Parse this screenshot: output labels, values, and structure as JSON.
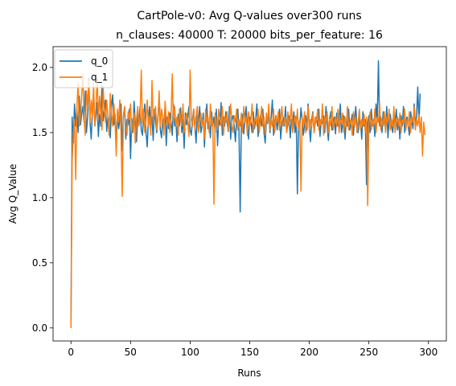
{
  "chart_data": {
    "type": "line",
    "title": "CartPole-v0: Avg Q-values over300 runs",
    "subtitle": "n_clauses: 40000 T: 20000 bits_per_feature: 16",
    "xlabel": "Runs",
    "ylabel": "Avg Q_Value",
    "xlim": [
      -15,
      315
    ],
    "ylim": [
      -0.1,
      2.16
    ],
    "xticks": [
      0,
      50,
      100,
      150,
      200,
      250,
      300
    ],
    "yticks": [
      0.0,
      0.5,
      1.0,
      1.5,
      2.0
    ],
    "ytick_labels": [
      "0.0",
      "0.5",
      "1.0",
      "1.5",
      "2.0"
    ],
    "grid": false,
    "legend_position": "top-left",
    "series": [
      {
        "name": "q_0",
        "color": "#1f77b4",
        "values": [
          0.0,
          1.62,
          1.42,
          1.72,
          1.55,
          1.68,
          1.5,
          1.78,
          1.56,
          1.64,
          1.7,
          1.58,
          1.82,
          1.5,
          1.62,
          1.92,
          1.58,
          1.45,
          1.67,
          1.8,
          1.55,
          1.63,
          1.73,
          1.47,
          1.64,
          1.55,
          1.86,
          1.59,
          1.67,
          1.75,
          1.51,
          1.62,
          1.58,
          1.46,
          1.7,
          1.79,
          1.56,
          1.64,
          1.4,
          1.66,
          1.53,
          1.6,
          1.72,
          1.36,
          1.63,
          1.7,
          1.45,
          1.6,
          1.56,
          1.68,
          1.3,
          1.61,
          1.5,
          1.74,
          1.56,
          1.43,
          1.63,
          1.58,
          1.7,
          1.52,
          1.48,
          1.64,
          1.72,
          1.5,
          1.39,
          1.6,
          1.7,
          1.55,
          1.62,
          1.44,
          1.68,
          1.58,
          1.5,
          1.63,
          1.75,
          1.52,
          1.46,
          1.61,
          1.57,
          1.69,
          1.4,
          1.62,
          1.53,
          1.65,
          1.58,
          1.48,
          1.72,
          1.55,
          1.6,
          1.43,
          1.64,
          1.55,
          1.69,
          1.5,
          1.6,
          1.38,
          1.65,
          1.56,
          1.62,
          1.7,
          1.52,
          1.48,
          1.6,
          1.68,
          1.55,
          1.42,
          1.63,
          1.58,
          1.7,
          1.5,
          1.55,
          1.65,
          1.39,
          1.6,
          1.72,
          1.53,
          1.58,
          1.46,
          1.66,
          1.55,
          1.62,
          1.5,
          1.68,
          1.4,
          1.6,
          1.56,
          1.73,
          1.48,
          1.62,
          1.55,
          1.66,
          1.58,
          1.51,
          1.7,
          1.45,
          1.6,
          1.63,
          1.55,
          1.43,
          1.6,
          1.68,
          1.52,
          0.89,
          1.57,
          1.64,
          1.49,
          1.6,
          1.7,
          1.55,
          1.45,
          1.62,
          1.58,
          1.5,
          1.66,
          1.53,
          1.6,
          1.72,
          1.47,
          1.58,
          1.63,
          1.55,
          1.68,
          1.5,
          1.42,
          1.6,
          1.57,
          1.65,
          1.5,
          1.62,
          1.75,
          1.48,
          1.56,
          1.63,
          1.52,
          1.6,
          1.68,
          1.45,
          1.58,
          1.62,
          1.55,
          1.7,
          1.5,
          1.57,
          1.63,
          1.46,
          1.6,
          1.55,
          1.66,
          1.5,
          1.62,
          1.03,
          1.58,
          1.54,
          1.69,
          1.6,
          1.48,
          1.56,
          1.63,
          1.52,
          1.72,
          1.55,
          1.43,
          1.6,
          1.66,
          1.5,
          1.58,
          1.62,
          1.55,
          1.68,
          1.47,
          1.6,
          1.57,
          1.63,
          1.5,
          1.7,
          1.55,
          1.44,
          1.6,
          1.66,
          1.52,
          1.58,
          1.62,
          1.49,
          1.65,
          1.55,
          1.6,
          1.72,
          1.5,
          1.56,
          1.63,
          1.45,
          1.6,
          1.55,
          1.68,
          1.52,
          1.58,
          1.64,
          1.48,
          1.6,
          1.7,
          1.55,
          1.5,
          1.62,
          1.58,
          1.45,
          1.66,
          1.55,
          1.6,
          1.1,
          1.57,
          1.63,
          1.5,
          1.68,
          1.55,
          1.6,
          1.47,
          1.72,
          1.58,
          2.05,
          1.55,
          1.62,
          1.5,
          1.66,
          1.58,
          1.53,
          1.7,
          1.46,
          1.6,
          1.64,
          1.55,
          1.5,
          1.62,
          1.58,
          1.68,
          1.52,
          1.6,
          1.45,
          1.63,
          1.55,
          1.7,
          1.5,
          1.58,
          1.62,
          1.55,
          1.48,
          1.66,
          1.6,
          1.53,
          1.72,
          1.57,
          1.62,
          1.85,
          1.58,
          1.8
        ]
      },
      {
        "name": "q_1",
        "color": "#ff7f0e",
        "values": [
          0.0,
          1.28,
          1.5,
          1.6,
          1.14,
          1.7,
          1.88,
          1.55,
          1.62,
          1.78,
          1.95,
          1.6,
          1.48,
          1.82,
          1.7,
          1.9,
          1.58,
          1.75,
          1.62,
          1.88,
          1.55,
          1.7,
          1.92,
          1.6,
          1.78,
          1.65,
          1.52,
          1.85,
          1.68,
          1.58,
          1.75,
          1.62,
          1.48,
          1.8,
          1.65,
          1.55,
          1.72,
          1.6,
          1.32,
          1.68,
          1.58,
          1.75,
          1.5,
          1.01,
          1.62,
          1.7,
          1.55,
          1.48,
          1.66,
          1.6,
          1.72,
          1.5,
          1.58,
          1.65,
          1.42,
          1.6,
          1.7,
          1.55,
          1.62,
          1.98,
          1.57,
          1.68,
          1.5,
          1.6,
          1.75,
          1.55,
          1.62,
          1.48,
          1.9,
          1.58,
          1.65,
          1.7,
          1.52,
          1.6,
          1.82,
          1.55,
          1.68,
          1.62,
          1.48,
          1.74,
          1.6,
          1.55,
          1.66,
          1.5,
          1.62,
          1.95,
          1.58,
          1.7,
          1.55,
          1.62,
          1.48,
          1.68,
          1.6,
          1.55,
          1.72,
          1.5,
          1.6,
          1.65,
          1.58,
          1.47,
          1.98,
          1.6,
          1.55,
          1.68,
          1.52,
          1.62,
          1.7,
          1.5,
          1.58,
          1.65,
          1.55,
          1.6,
          1.45,
          1.68,
          1.58,
          1.62,
          1.5,
          1.72,
          1.55,
          1.6,
          0.95,
          1.65,
          1.58,
          1.52,
          1.68,
          1.6,
          1.55,
          1.7,
          1.48,
          1.62,
          1.58,
          1.66,
          1.52,
          1.6,
          1.72,
          1.55,
          1.5,
          1.63,
          1.58,
          1.68,
          1.52,
          1.6,
          1.55,
          1.65,
          1.5,
          1.7,
          1.58,
          1.62,
          1.48,
          1.66,
          1.55,
          1.6,
          1.72,
          1.5,
          1.58,
          1.62,
          1.55,
          1.68,
          1.5,
          1.6,
          1.7,
          1.55,
          1.62,
          1.48,
          1.65,
          1.58,
          1.72,
          1.52,
          1.6,
          1.55,
          1.68,
          1.5,
          1.62,
          1.58,
          1.66,
          1.52,
          1.6,
          1.7,
          1.55,
          1.58,
          1.62,
          1.5,
          1.66,
          1.55,
          1.6,
          1.72,
          1.5,
          1.58,
          1.63,
          1.55,
          1.68,
          1.52,
          1.6,
          1.05,
          1.62,
          1.55,
          1.66,
          1.5,
          1.58,
          1.7,
          1.52,
          1.6,
          1.55,
          1.65,
          1.5,
          1.62,
          1.58,
          1.68,
          1.52,
          1.6,
          1.55,
          1.72,
          1.48,
          1.62,
          1.58,
          1.66,
          1.5,
          1.6,
          1.55,
          1.7,
          1.52,
          1.58,
          1.62,
          1.55,
          1.68,
          1.5,
          1.6,
          1.57,
          1.65,
          1.5,
          1.62,
          1.55,
          1.7,
          1.52,
          1.58,
          1.6,
          1.48,
          1.66,
          1.55,
          1.62,
          1.5,
          1.58,
          1.68,
          1.52,
          1.6,
          1.55,
          1.64,
          1.5,
          1.62,
          0.94,
          1.58,
          1.66,
          1.52,
          1.6,
          1.55,
          1.68,
          1.5,
          1.62,
          1.58,
          1.72,
          1.52,
          1.6,
          1.55,
          1.66,
          1.5,
          1.62,
          1.58,
          1.68,
          1.52,
          1.6,
          1.55,
          1.7,
          1.5,
          1.58,
          1.62,
          1.55,
          1.65,
          1.5,
          1.6,
          1.57,
          1.68,
          1.52,
          1.6,
          1.55,
          1.66,
          1.5,
          1.62,
          1.58,
          1.7,
          1.52,
          1.6,
          1.55,
          1.64,
          1.5,
          1.62,
          1.32,
          1.58,
          1.48
        ]
      }
    ]
  }
}
